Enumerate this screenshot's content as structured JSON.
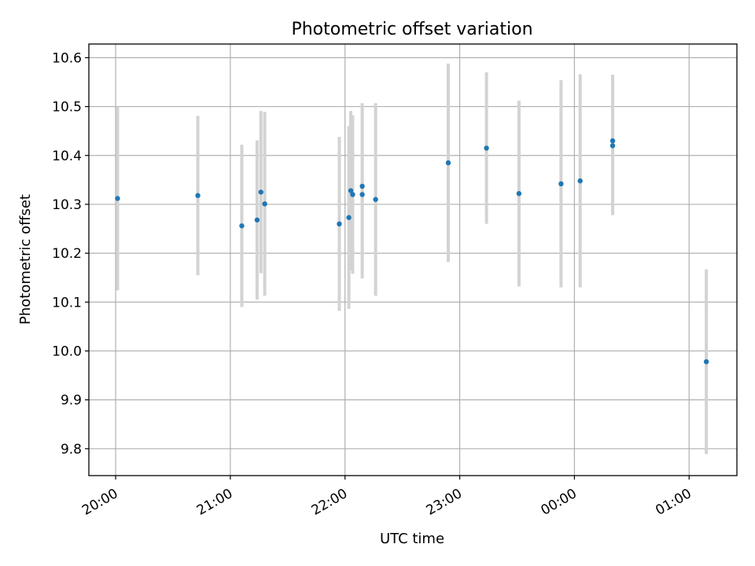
{
  "chart_data": {
    "type": "scatter",
    "title": "Photometric offset variation",
    "xlabel": "UTC time",
    "ylabel": "Photometric offset",
    "x_unit": "UTC (hours past 20:00, wraps past midnight)",
    "xlim": [
      "19:46",
      "01:25"
    ],
    "ylim": [
      9.745,
      10.628
    ],
    "grid": true,
    "x_ticks": [
      {
        "label": "20:00",
        "value": "20:00"
      },
      {
        "label": "21:00",
        "value": "21:00"
      },
      {
        "label": "22:00",
        "value": "22:00"
      },
      {
        "label": "23:00",
        "value": "23:00"
      },
      {
        "label": "00:00",
        "value": "00:00"
      },
      {
        "label": "01:00",
        "value": "01:00"
      }
    ],
    "y_ticks": [
      "9.8",
      "9.9",
      "10.0",
      "10.1",
      "10.2",
      "10.3",
      "10.4",
      "10.5",
      "10.6"
    ],
    "colors": {
      "marker": "#1f77b4",
      "errorbar": "#d3d3d3",
      "grid": "#b0b0b0"
    },
    "points": [
      {
        "time": "20:01",
        "y": 10.312,
        "err": 0.188
      },
      {
        "time": "20:43",
        "y": 10.318,
        "err": 0.163
      },
      {
        "time": "21:06",
        "y": 10.256,
        "err": 0.166
      },
      {
        "time": "21:14",
        "y": 10.268,
        "err": 0.163
      },
      {
        "time": "21:16",
        "y": 10.325,
        "err": 0.166
      },
      {
        "time": "21:18",
        "y": 10.301,
        "err": 0.188
      },
      {
        "time": "21:57",
        "y": 10.26,
        "err": 0.178
      },
      {
        "time": "22:02",
        "y": 10.273,
        "err": 0.187
      },
      {
        "time": "22:03",
        "y": 10.328,
        "err": 0.163
      },
      {
        "time": "22:04",
        "y": 10.32,
        "err": 0.162
      },
      {
        "time": "22:09",
        "y": 10.337,
        "err": 0.17
      },
      {
        "time": "22:09",
        "y": 10.32,
        "err": 0.172
      },
      {
        "time": "22:16",
        "y": 10.31,
        "err": 0.197
      },
      {
        "time": "22:54",
        "y": 10.385,
        "err": 0.203
      },
      {
        "time": "23:14",
        "y": 10.415,
        "err": 0.155
      },
      {
        "time": "23:31",
        "y": 10.322,
        "err": 0.19
      },
      {
        "time": "23:53",
        "y": 10.342,
        "err": 0.212
      },
      {
        "time": "00:03",
        "y": 10.348,
        "err": 0.218
      },
      {
        "time": "00:20",
        "y": 10.43,
        "err": 0.135
      },
      {
        "time": "00:20",
        "y": 10.42,
        "err": 0.142
      },
      {
        "time": "01:09",
        "y": 9.978,
        "err": 0.189
      }
    ]
  }
}
